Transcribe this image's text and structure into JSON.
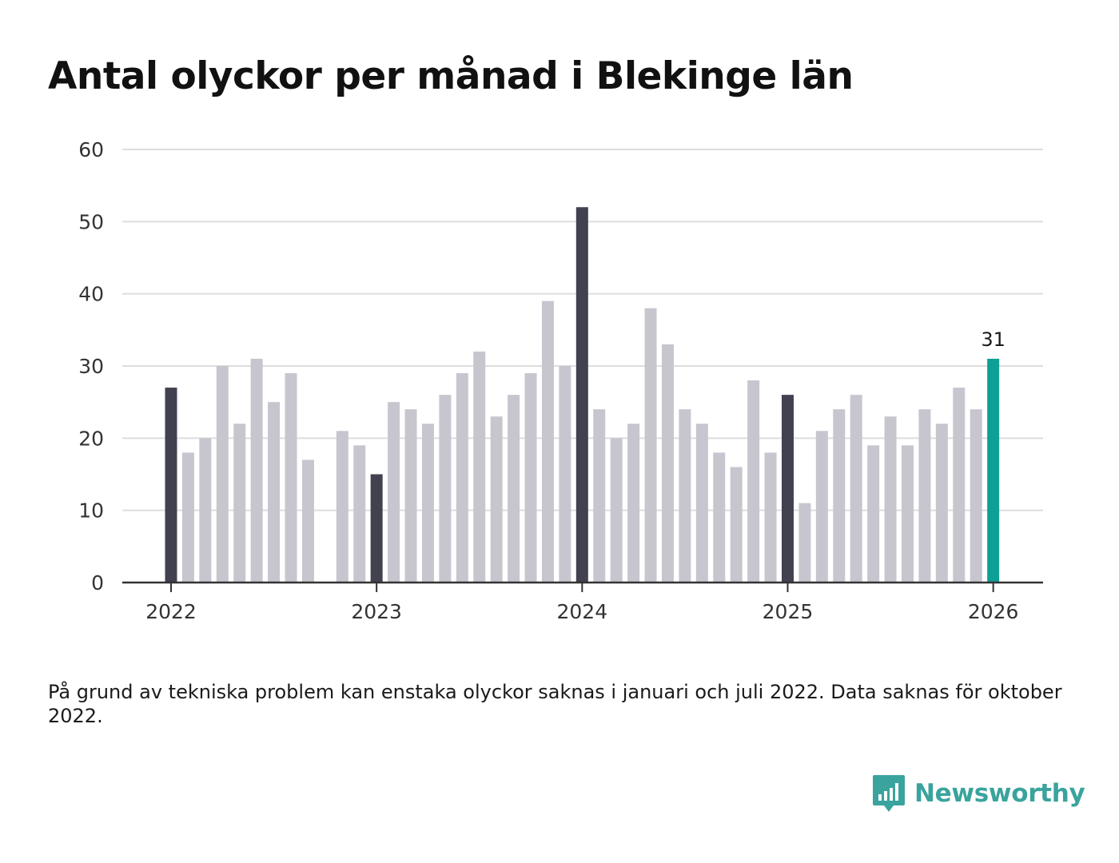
{
  "chart_data": {
    "type": "bar",
    "title": "Antal olyckor per månad i Blekinge län",
    "xlabel": "",
    "ylabel": "",
    "ylim": [
      0,
      60
    ],
    "y_ticks": [
      0,
      10,
      20,
      30,
      40,
      50,
      60
    ],
    "x_tick_labels": [
      {
        "label": "2022",
        "index": 0
      },
      {
        "label": "2023",
        "index": 12
      },
      {
        "label": "2024",
        "index": 24
      },
      {
        "label": "2025",
        "index": 36
      },
      {
        "label": "2026",
        "index": 48
      }
    ],
    "grid": true,
    "categories": [
      "2022-01",
      "2022-02",
      "2022-03",
      "2022-04",
      "2022-05",
      "2022-06",
      "2022-07",
      "2022-08",
      "2022-09",
      "2022-10",
      "2022-11",
      "2022-12",
      "2023-01",
      "2023-02",
      "2023-03",
      "2023-04",
      "2023-05",
      "2023-06",
      "2023-07",
      "2023-08",
      "2023-09",
      "2023-10",
      "2023-11",
      "2023-12",
      "2024-01",
      "2024-02",
      "2024-03",
      "2024-04",
      "2024-05",
      "2024-06",
      "2024-07",
      "2024-08",
      "2024-09",
      "2024-10",
      "2024-11",
      "2024-12",
      "2025-01",
      "2025-02",
      "2025-03",
      "2025-04",
      "2025-05",
      "2025-06",
      "2025-07",
      "2025-08",
      "2025-09",
      "2025-10",
      "2025-11",
      "2025-12",
      "2026-01"
    ],
    "values": [
      27,
      18,
      20,
      30,
      22,
      31,
      25,
      29,
      17,
      null,
      21,
      19,
      15,
      25,
      24,
      22,
      26,
      29,
      32,
      23,
      26,
      29,
      39,
      30,
      52,
      24,
      20,
      22,
      38,
      33,
      24,
      22,
      18,
      16,
      28,
      18,
      26,
      11,
      21,
      24,
      26,
      19,
      23,
      19,
      24,
      22,
      27,
      24,
      31
    ],
    "highlight_label": "31",
    "colors": {
      "january": "#42414f",
      "other": "#c7c6cf",
      "latest": "#0e9f96",
      "grid": "#dddddd",
      "axis": "#333333"
    }
  },
  "footnote": "På grund av tekniska problem kan enstaka olyckor saknas i januari och juli 2022. Data saknas för oktober 2022.",
  "brand": {
    "name": "Newsworthy",
    "icon": "bar-chart-speech-bubble-icon",
    "color": "#3aa39d"
  }
}
